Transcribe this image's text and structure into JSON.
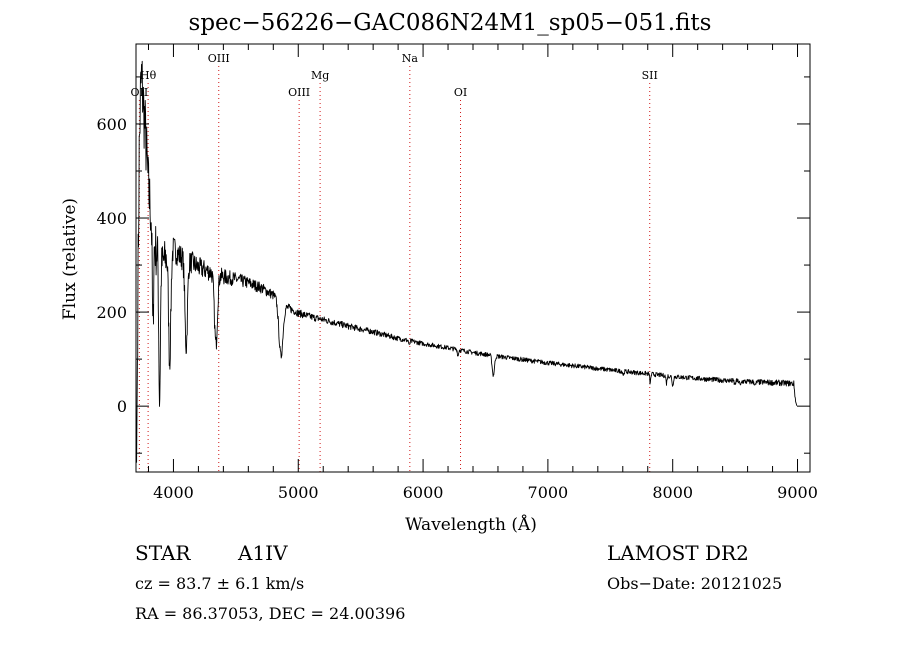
{
  "chart_data": {
    "type": "line",
    "title": "spec−56226−GAC086N24M1_sp05−051.fits",
    "xlabel": "Wavelength (Å)",
    "ylabel": "Flux (relative)",
    "xlim": [
      3700,
      9100
    ],
    "ylim": [
      -140,
      770
    ],
    "xticks": [
      4000,
      5000,
      6000,
      7000,
      8000,
      9000
    ],
    "xtick_labels": [
      "4000",
      "5000",
      "6000",
      "7000",
      "8000",
      "9000"
    ],
    "yticks": [
      0,
      200,
      400,
      600
    ],
    "ytick_labels": [
      "0",
      "200",
      "400",
      "600"
    ],
    "grid": false,
    "line_color": "#000000",
    "marker_color": "#d01818",
    "lines": [
      {
        "label": "OII",
        "x": 3727,
        "tier": 3
      },
      {
        "label": "Hθ",
        "x": 3797,
        "tier": 2
      },
      {
        "label": "OIII",
        "x": 4363,
        "tier": 1
      },
      {
        "label": "OIII",
        "x": 5007,
        "tier": 3
      },
      {
        "label": "Mg",
        "x": 5175,
        "tier": 2
      },
      {
        "label": "Na",
        "x": 5894,
        "tier": 1
      },
      {
        "label": "OI",
        "x": 6300,
        "tier": 3
      },
      {
        "label": "SII",
        "x": 7816,
        "tier": 2
      }
    ],
    "continuum": [
      [
        3705,
        -120
      ],
      [
        3712,
        130
      ],
      [
        3718,
        320
      ],
      [
        3725,
        520
      ],
      [
        3735,
        650
      ],
      [
        3745,
        700
      ],
      [
        3760,
        640
      ],
      [
        3780,
        560
      ],
      [
        3800,
        460
      ],
      [
        3850,
        340
      ],
      [
        3900,
        300
      ],
      [
        3950,
        320
      ],
      [
        4000,
        335
      ],
      [
        4050,
        320
      ],
      [
        4100,
        310
      ],
      [
        4150,
        305
      ],
      [
        4200,
        295
      ],
      [
        4300,
        285
      ],
      [
        4400,
        275
      ],
      [
        4500,
        270
      ],
      [
        4600,
        262
      ],
      [
        4700,
        252
      ],
      [
        4800,
        236
      ],
      [
        4900,
        212
      ],
      [
        5000,
        198
      ],
      [
        5100,
        190
      ],
      [
        5200,
        184
      ],
      [
        5400,
        170
      ],
      [
        5600,
        158
      ],
      [
        5800,
        144
      ],
      [
        6000,
        133
      ],
      [
        6200,
        124
      ],
      [
        6400,
        114
      ],
      [
        6600,
        106
      ],
      [
        6800,
        99
      ],
      [
        7000,
        92
      ],
      [
        7200,
        86
      ],
      [
        7400,
        80
      ],
      [
        7600,
        74
      ],
      [
        7800,
        69
      ],
      [
        8000,
        63
      ],
      [
        8200,
        59
      ],
      [
        8400,
        55
      ],
      [
        8600,
        52
      ],
      [
        8800,
        50
      ],
      [
        8900,
        49
      ],
      [
        8970,
        48
      ],
      [
        8985,
        10
      ],
      [
        8995,
        0
      ]
    ],
    "absorption": [
      [
        3835,
        220,
        5
      ],
      [
        3889,
        300,
        6
      ],
      [
        3970,
        230,
        9
      ],
      [
        4102,
        185,
        10
      ],
      [
        4340,
        150,
        12
      ],
      [
        4861,
        115,
        16
      ],
      [
        5890,
        12,
        4
      ],
      [
        6280,
        14,
        4
      ],
      [
        6563,
        42,
        9
      ],
      [
        7605,
        8,
        4
      ],
      [
        7820,
        20,
        4
      ],
      [
        7950,
        16,
        4
      ],
      [
        8000,
        20,
        5
      ],
      [
        8498,
        8,
        5
      ],
      [
        8542,
        10,
        5
      ],
      [
        8662,
        8,
        5
      ]
    ],
    "noise_amplitude": [
      [
        3700,
        120
      ],
      [
        3800,
        90
      ],
      [
        4000,
        35
      ],
      [
        4500,
        18
      ],
      [
        5000,
        10
      ],
      [
        6000,
        6
      ],
      [
        8000,
        6
      ],
      [
        9000,
        8
      ]
    ]
  },
  "info": {
    "objclass": "STAR",
    "subclass": "A1IV",
    "survey": "LAMOST DR2",
    "cz": "cz = 83.7 ± 6.1 km/s",
    "obsdate": "Obs−Date: 20121025",
    "radec": "RA =  86.37053, DEC =  24.00396"
  }
}
